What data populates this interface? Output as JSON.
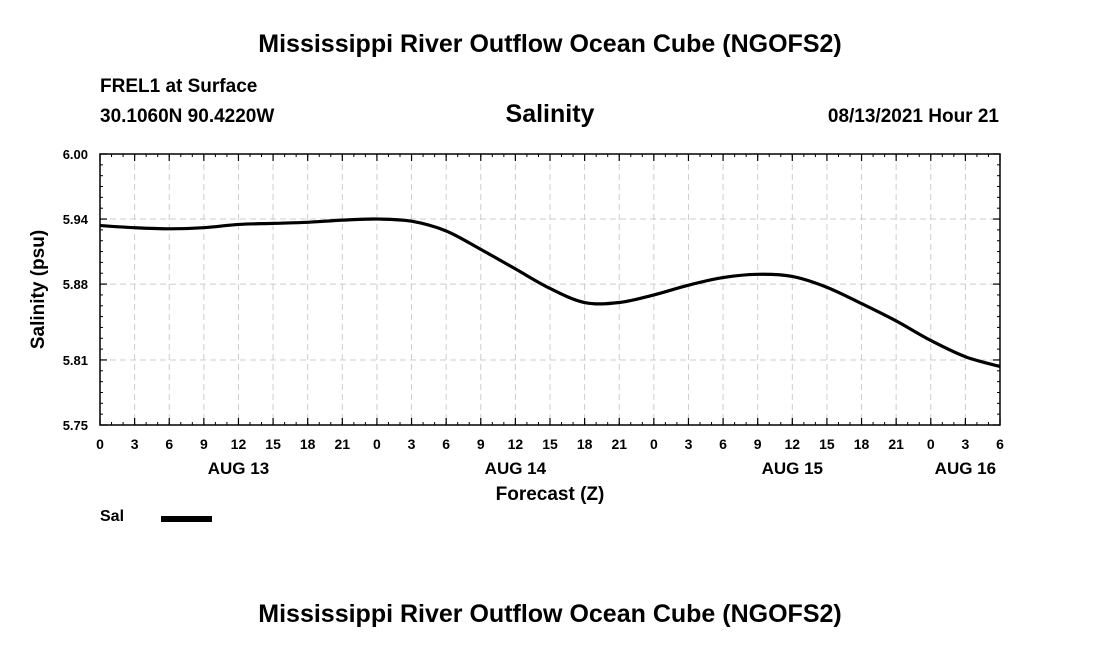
{
  "header": {
    "title_top": "Mississippi River Outflow Ocean Cube (NGOFS2)",
    "station": "FREL1 at Surface",
    "coords": "30.1060N  90.4220W",
    "variable": "Salinity",
    "timestamp": "08/13/2021 Hour 21"
  },
  "footer": {
    "title_bottom": "Mississippi River Outflow Ocean Cube (NGOFS2)"
  },
  "legend": {
    "series_label": "Sal",
    "line_color": "#000000"
  },
  "chart_data": {
    "type": "line",
    "title": "Salinity",
    "xlabel": "Forecast (Z)",
    "ylabel": "Salinity (psu)",
    "ylim": [
      5.75,
      6.0
    ],
    "yticks": [
      "6.00",
      "5.94",
      "5.88",
      "5.81",
      "5.75"
    ],
    "ytick_values": [
      6.0,
      5.94,
      5.88,
      5.81,
      5.75
    ],
    "xlim": [
      0,
      78
    ],
    "xticks_hours": [
      0,
      3,
      6,
      9,
      12,
      15,
      18,
      21,
      24,
      27,
      30,
      33,
      36,
      39,
      42,
      45,
      48,
      51,
      54,
      57,
      60,
      63,
      66,
      69,
      72,
      75,
      78
    ],
    "xtick_labels": [
      "0",
      "3",
      "6",
      "9",
      "12",
      "15",
      "18",
      "21",
      "0",
      "3",
      "6",
      "9",
      "12",
      "15",
      "18",
      "21",
      "0",
      "3",
      "6",
      "9",
      "12",
      "15",
      "18",
      "21",
      "0",
      "3",
      "6"
    ],
    "date_labels": [
      {
        "label": "AUG 13",
        "hour": 12
      },
      {
        "label": "AUG 14",
        "hour": 36
      },
      {
        "label": "AUG 15",
        "hour": 60
      },
      {
        "label": "AUG 16",
        "hour": 75
      }
    ],
    "grid": true,
    "series": [
      {
        "name": "Sal",
        "x": [
          0,
          3,
          6,
          9,
          12,
          15,
          18,
          21,
          24,
          27,
          30,
          33,
          36,
          39,
          42,
          45,
          48,
          51,
          54,
          57,
          60,
          63,
          66,
          69,
          72,
          75,
          78
        ],
        "y": [
          5.934,
          5.932,
          5.931,
          5.932,
          5.935,
          5.936,
          5.937,
          5.939,
          5.94,
          5.938,
          5.929,
          5.912,
          5.894,
          5.876,
          5.863,
          5.863,
          5.87,
          5.879,
          5.886,
          5.889,
          5.887,
          5.877,
          5.862,
          5.846,
          5.828,
          5.813,
          5.804
        ]
      }
    ]
  }
}
